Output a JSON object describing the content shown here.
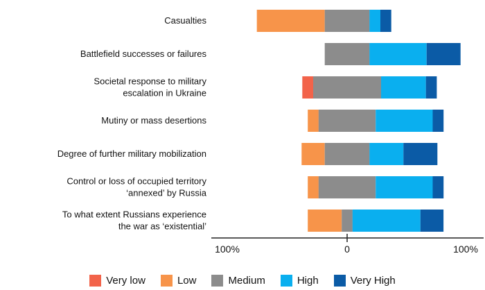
{
  "chart_data": {
    "type": "bar",
    "orientation": "horizontal",
    "stacked": "diverging",
    "title": "",
    "xlabel": "",
    "ylabel": "",
    "xlim": [
      -100,
      100
    ],
    "x_tick_labels": [
      "100%",
      "0",
      "100%"
    ],
    "categories": [
      "Casualties",
      "Battlefield successes or failures",
      "Societal response to military escalation in Ukraine",
      "Mutiny or mass desertions",
      "Degree of further military mobilization",
      "Control or loss of occupied territory ‘annexed’ by Russia",
      "To what extent Russians experience the war as ‘existential’"
    ],
    "category_lines": [
      [
        "Casualties"
      ],
      [
        "Battlefield successes or failures"
      ],
      [
        "Societal response to military",
        "escalation in Ukraine"
      ],
      [
        "Mutiny or mass desertions"
      ],
      [
        "Degree of further military mobilization"
      ],
      [
        "Control or loss of occupied territory",
        "‘annexed’ by Russia"
      ],
      [
        "To what extent Russians experience",
        "the war as ‘existential’"
      ]
    ],
    "series": [
      {
        "name": "Very low",
        "color": "#f2634a",
        "values": [
          0,
          0,
          8,
          0,
          0,
          0,
          0
        ]
      },
      {
        "name": "Low",
        "color": "#f7944a",
        "values": [
          50,
          0,
          0,
          8,
          17,
          8,
          25
        ]
      },
      {
        "name": "Medium",
        "color": "#8c8c8c",
        "values": [
          33,
          33,
          50,
          42,
          33,
          42,
          8
        ]
      },
      {
        "name": "High",
        "color": "#0aafef",
        "values": [
          8,
          42,
          33,
          42,
          25,
          42,
          50
        ]
      },
      {
        "name": "Very High",
        "color": "#0b5ba6",
        "values": [
          8,
          25,
          8,
          8,
          25,
          8,
          17
        ]
      }
    ],
    "grid": false,
    "legend_position": "bottom"
  }
}
